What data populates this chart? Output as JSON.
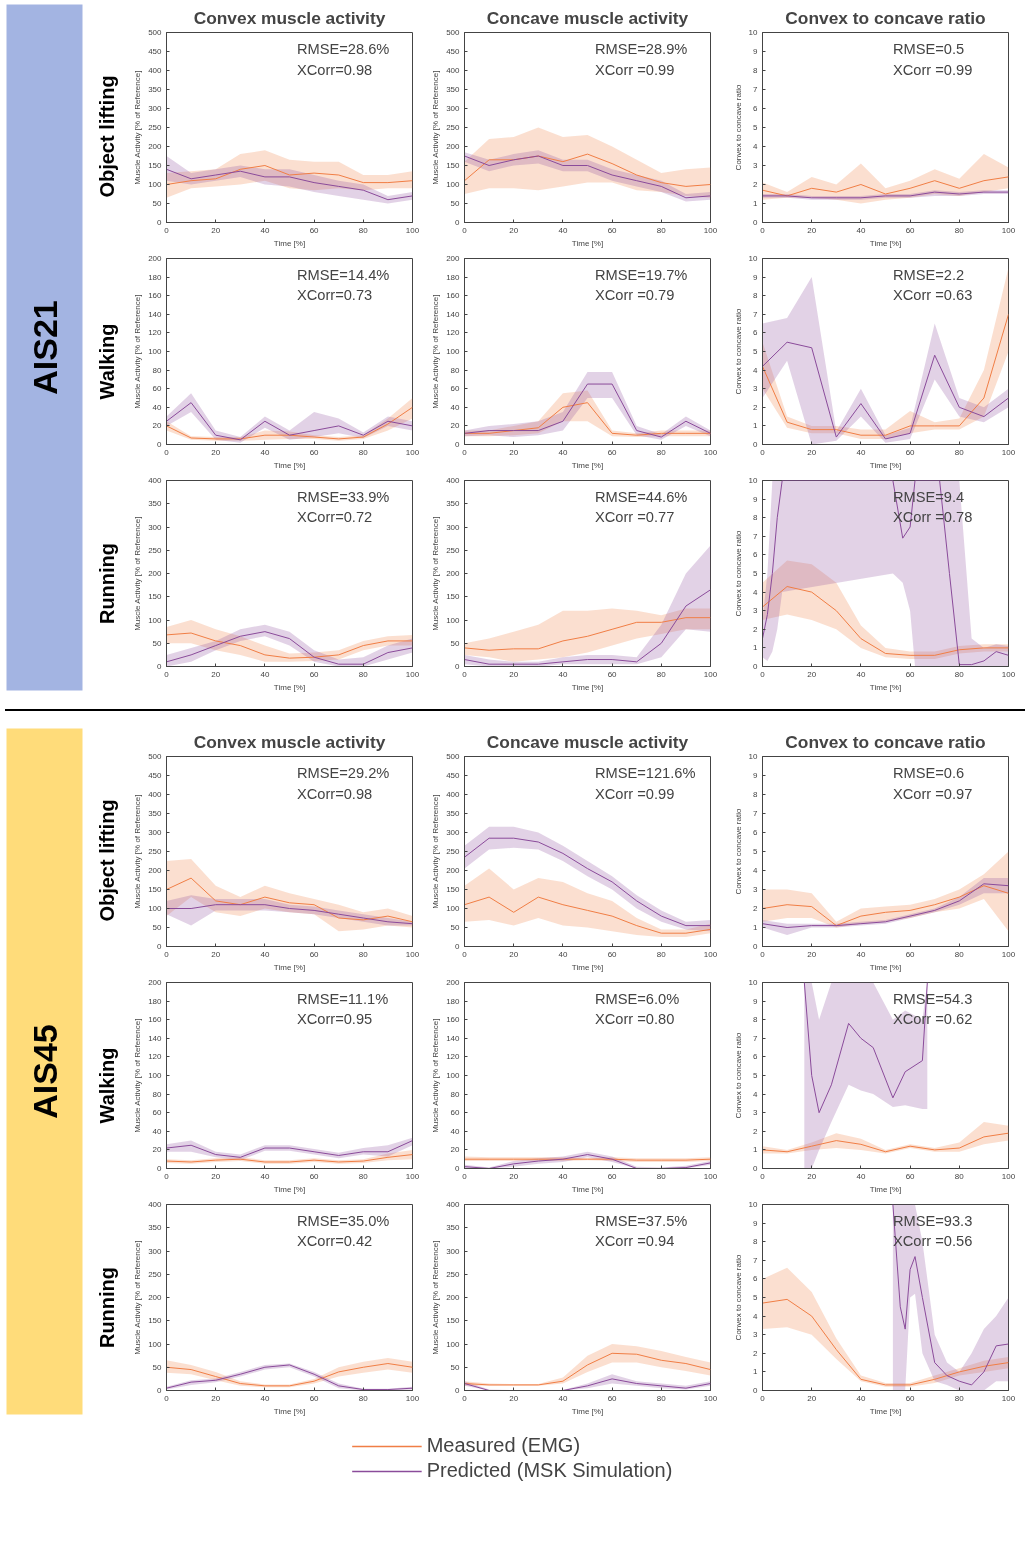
{
  "chart_data": [
    {
      "type": "other",
      "title": "AIS21",
      "color": "#a3b4e2",
      "annotations": [
        "Object lifting",
        "Walking",
        "Running"
      ]
    },
    {
      "type": "line",
      "title": "Convex muscle activity",
      "xlabel": "Time [%]",
      "ylabel": "Muscle Activity [% of Reference]",
      "x": [
        0,
        10,
        20,
        30,
        40,
        50,
        60,
        70,
        80,
        90,
        100
      ],
      "xlim": [
        0,
        100
      ],
      "xticks": [
        0,
        20,
        40,
        60,
        80,
        100
      ],
      "ylim": [
        0,
        500
      ],
      "yticks": [
        0,
        50,
        100,
        150,
        200,
        250,
        300,
        350,
        400,
        450,
        500
      ],
      "annotations": [
        "RMSE=28.6%",
        "XCorr=0.98"
      ],
      "series": [
        {
          "color": "#f07e45",
          "values": [
            100,
            110,
            115,
            140,
            150,
            125,
            130,
            125,
            105,
            105,
            110
          ],
          "lower": [
            65,
            90,
            95,
            100,
            110,
            90,
            85,
            90,
            85,
            90,
            90
          ],
          "upper": [
            130,
            135,
            140,
            180,
            190,
            165,
            160,
            160,
            125,
            125,
            135
          ]
        },
        {
          "color": "#8a4b9a",
          "values": [
            140,
            115,
            125,
            135,
            120,
            120,
            105,
            95,
            85,
            60,
            70
          ],
          "lower": [
            110,
            100,
            110,
            120,
            100,
            95,
            80,
            70,
            60,
            50,
            60
          ],
          "upper": [
            175,
            130,
            140,
            150,
            140,
            140,
            125,
            110,
            100,
            70,
            80
          ]
        }
      ]
    },
    {
      "type": "line",
      "title": "Concave muscle activity",
      "xlabel": "Time [%]",
      "ylabel": "Muscle Activity [% of Reference]",
      "x": [
        0,
        10,
        20,
        30,
        40,
        50,
        60,
        70,
        80,
        90,
        100
      ],
      "xlim": [
        0,
        100
      ],
      "xticks": [
        0,
        20,
        40,
        60,
        80,
        100
      ],
      "ylim": [
        0,
        500
      ],
      "yticks": [
        0,
        50,
        100,
        150,
        200,
        250,
        300,
        350,
        400,
        450,
        500
      ],
      "annotations": [
        "RMSE=28.9%",
        "XCorr =0.99"
      ],
      "series": [
        {
          "color": "#f07e45",
          "values": [
            110,
            165,
            165,
            175,
            160,
            180,
            155,
            125,
            105,
            95,
            100
          ],
          "lower": [
            75,
            90,
            90,
            85,
            95,
            105,
            105,
            85,
            80,
            70,
            65
          ],
          "upper": [
            160,
            220,
            225,
            250,
            225,
            230,
            200,
            165,
            130,
            140,
            145
          ]
        },
        {
          "color": "#8a4b9a",
          "values": [
            175,
            150,
            165,
            175,
            150,
            150,
            125,
            110,
            95,
            65,
            70
          ],
          "lower": [
            160,
            135,
            150,
            155,
            135,
            135,
            110,
            95,
            80,
            55,
            60
          ],
          "upper": [
            185,
            165,
            180,
            190,
            165,
            165,
            140,
            125,
            110,
            75,
            80
          ]
        }
      ]
    },
    {
      "type": "line",
      "title": "Convex to concave ratio",
      "xlabel": "Time [%]",
      "ylabel": "Convex to concave ratio",
      "x": [
        0,
        10,
        20,
        30,
        40,
        50,
        60,
        70,
        80,
        90,
        100
      ],
      "xlim": [
        0,
        100
      ],
      "xticks": [
        0,
        20,
        40,
        60,
        80,
        100
      ],
      "ylim": [
        0,
        10
      ],
      "yticks": [
        0,
        1,
        2,
        3,
        4,
        5,
        6,
        7,
        8,
        9,
        10
      ],
      "annotations": [
        "RMSE=0.5",
        "XCorr =0.99"
      ],
      "series": [
        {
          "color": "#f07e45",
          "values": [
            1.7,
            1.4,
            1.8,
            1.6,
            2.0,
            1.5,
            1.8,
            2.2,
            1.8,
            2.2,
            2.4
          ],
          "lower": [
            1.2,
            1.3,
            1.3,
            1.2,
            1.0,
            1.2,
            1.3,
            1.5,
            1.4,
            1.6,
            1.8
          ],
          "upper": [
            2.1,
            1.6,
            2.4,
            2.0,
            3.1,
            1.8,
            2.2,
            2.8,
            2.3,
            3.6,
            2.9
          ]
        },
        {
          "color": "#8a4b9a",
          "values": [
            1.4,
            1.4,
            1.3,
            1.3,
            1.3,
            1.4,
            1.4,
            1.6,
            1.5,
            1.6,
            1.6
          ],
          "lower": [
            1.3,
            1.3,
            1.2,
            1.2,
            1.2,
            1.3,
            1.3,
            1.4,
            1.4,
            1.5,
            1.5
          ],
          "upper": [
            1.5,
            1.5,
            1.4,
            1.4,
            1.4,
            1.5,
            1.5,
            1.7,
            1.6,
            1.7,
            1.7
          ]
        }
      ]
    },
    {
      "type": "line",
      "xlabel": "Time [%]",
      "ylabel": "Muscle Activity [% of Reference]",
      "x": [
        0,
        10,
        20,
        30,
        40,
        50,
        60,
        70,
        80,
        90,
        100
      ],
      "xlim": [
        0,
        100
      ],
      "xticks": [
        0,
        20,
        40,
        60,
        80,
        100
      ],
      "ylim": [
        0,
        200
      ],
      "yticks": [
        0,
        20,
        40,
        60,
        80,
        100,
        120,
        140,
        160,
        180,
        200
      ],
      "annotations": [
        "RMSE=14.4%",
        "XCorr=0.73"
      ],
      "series": [
        {
          "color": "#f07e45",
          "values": [
            20,
            7,
            6,
            6,
            10,
            10,
            8,
            6,
            8,
            22,
            40
          ],
          "lower": [
            15,
            5,
            4,
            4,
            5,
            6,
            6,
            4,
            6,
            15,
            28
          ],
          "upper": [
            25,
            9,
            8,
            8,
            15,
            14,
            10,
            8,
            10,
            28,
            50
          ]
        },
        {
          "color": "#8a4b9a",
          "values": [
            25,
            45,
            10,
            5,
            25,
            10,
            15,
            20,
            10,
            25,
            20
          ],
          "lower": [
            20,
            35,
            5,
            2,
            18,
            5,
            8,
            12,
            7,
            20,
            15
          ],
          "upper": [
            30,
            55,
            15,
            8,
            30,
            15,
            35,
            28,
            13,
            30,
            25
          ]
        }
      ]
    },
    {
      "type": "line",
      "xlabel": "Time [%]",
      "ylabel": "Muscle Activity [% of Reference]",
      "x": [
        0,
        10,
        20,
        30,
        40,
        50,
        60,
        70,
        80,
        90,
        100
      ],
      "xlim": [
        0,
        100
      ],
      "xticks": [
        0,
        20,
        40,
        60,
        80,
        100
      ],
      "ylim": [
        0,
        200
      ],
      "yticks": [
        0,
        20,
        40,
        60,
        80,
        100,
        120,
        140,
        160,
        180,
        200
      ],
      "annotations": [
        "RMSE=19.7%",
        "XCorr =0.79"
      ],
      "series": [
        {
          "color": "#f07e45",
          "values": [
            12,
            12,
            15,
            18,
            40,
            45,
            12,
            10,
            12,
            12,
            12
          ],
          "lower": [
            9,
            9,
            10,
            12,
            25,
            25,
            9,
            8,
            9,
            9,
            9
          ],
          "upper": [
            15,
            15,
            20,
            25,
            55,
            58,
            15,
            12,
            15,
            15,
            15
          ]
        },
        {
          "color": "#8a4b9a",
          "values": [
            12,
            15,
            15,
            15,
            25,
            65,
            65,
            15,
            8,
            25,
            12
          ],
          "lower": [
            9,
            10,
            8,
            10,
            15,
            50,
            50,
            10,
            5,
            20,
            9
          ],
          "upper": [
            15,
            20,
            22,
            25,
            35,
            78,
            78,
            20,
            11,
            30,
            15
          ]
        }
      ]
    },
    {
      "type": "line",
      "xlabel": "Time [%]",
      "ylabel": "Convex to concave ratio",
      "x": [
        0,
        10,
        20,
        30,
        40,
        50,
        60,
        70,
        80,
        90,
        100
      ],
      "xlim": [
        0,
        100
      ],
      "xticks": [
        0,
        20,
        40,
        60,
        80,
        100
      ],
      "ylim": [
        0,
        10
      ],
      "yticks": [
        0,
        1,
        2,
        3,
        4,
        5,
        6,
        7,
        8,
        9,
        10
      ],
      "annotations": [
        "RMSE=2.2",
        "XCorr =0.63"
      ],
      "series": [
        {
          "color": "#f07e45",
          "values": [
            4.2,
            1.2,
            0.8,
            0.8,
            0.5,
            0.5,
            1.0,
            1.0,
            1.0,
            2.5,
            7.0
          ],
          "lower": [
            3.0,
            0.9,
            0.6,
            0.6,
            0.3,
            0.3,
            0.6,
            0.8,
            0.8,
            1.5,
            5.0
          ],
          "upper": [
            5.5,
            1.5,
            1.0,
            1.0,
            0.8,
            0.8,
            1.8,
            1.2,
            1.4,
            4.0,
            9.5
          ]
        },
        {
          "color": "#8a4b9a",
          "values": [
            4.2,
            5.5,
            5.2,
            0.4,
            2.2,
            0.3,
            0.6,
            4.8,
            2.0,
            1.5,
            2.5
          ],
          "lower": [
            2.5,
            4.5,
            0,
            0.2,
            1.5,
            0.1,
            0.3,
            3.5,
            1.5,
            1.2,
            2.0
          ],
          "upper": [
            6.5,
            6.8,
            9.0,
            0.7,
            3.0,
            0.5,
            0.9,
            6.5,
            2.5,
            2.0,
            3.0
          ]
        }
      ]
    },
    {
      "type": "line",
      "xlabel": "Time [%]",
      "ylabel": "Muscle Activity [% of Reference]",
      "x": [
        0,
        10,
        20,
        30,
        40,
        50,
        60,
        70,
        80,
        90,
        100
      ],
      "xlim": [
        0,
        100
      ],
      "xticks": [
        0,
        20,
        40,
        60,
        80,
        100
      ],
      "ylim": [
        0,
        400
      ],
      "yticks": [
        0,
        50,
        100,
        150,
        200,
        250,
        300,
        350,
        400
      ],
      "annotations": [
        "RMSE=33.9%",
        "XCorr=0.72"
      ],
      "series": [
        {
          "color": "#f07e45",
          "values": [
            68,
            72,
            55,
            45,
            25,
            18,
            20,
            25,
            45,
            55,
            55
          ],
          "lower": [
            50,
            50,
            35,
            25,
            10,
            10,
            12,
            15,
            35,
            45,
            45
          ],
          "upper": [
            85,
            100,
            80,
            65,
            45,
            28,
            30,
            35,
            55,
            65,
            68
          ]
        },
        {
          "color": "#8a4b9a",
          "values": [
            10,
            25,
            45,
            65,
            75,
            60,
            20,
            5,
            5,
            30,
            40
          ],
          "lower": [
            0,
            10,
            35,
            55,
            65,
            45,
            10,
            0,
            0,
            15,
            30
          ],
          "upper": [
            25,
            40,
            55,
            80,
            90,
            75,
            35,
            15,
            20,
            45,
            60
          ]
        }
      ]
    },
    {
      "type": "line",
      "xlabel": "Time [%]",
      "ylabel": "Muscle Activity [% of Reference]",
      "x": [
        0,
        10,
        20,
        30,
        40,
        50,
        60,
        70,
        80,
        90,
        100
      ],
      "xlim": [
        0,
        100
      ],
      "xticks": [
        0,
        20,
        40,
        60,
        80,
        100
      ],
      "ylim": [
        0,
        400
      ],
      "yticks": [
        0,
        50,
        100,
        150,
        200,
        250,
        300,
        350,
        400
      ],
      "annotations": [
        "RMSE=44.6%",
        "XCorr =0.77"
      ],
      "series": [
        {
          "color": "#f07e45",
          "values": [
            40,
            35,
            38,
            38,
            55,
            65,
            80,
            95,
            95,
            105,
            105
          ],
          "lower": [
            25,
            20,
            10,
            15,
            20,
            30,
            45,
            60,
            70,
            80,
            80
          ],
          "upper": [
            50,
            60,
            75,
            90,
            120,
            120,
            125,
            120,
            110,
            125,
            125
          ]
        },
        {
          "color": "#8a4b9a",
          "values": [
            15,
            5,
            5,
            5,
            10,
            15,
            15,
            10,
            50,
            130,
            165
          ],
          "lower": [
            5,
            0,
            0,
            0,
            5,
            5,
            5,
            5,
            20,
            80,
            75
          ],
          "upper": [
            25,
            15,
            10,
            10,
            20,
            25,
            25,
            20,
            90,
            200,
            260
          ]
        }
      ]
    },
    {
      "type": "line",
      "xlabel": "Time [%]",
      "ylabel": "Convex to concave ratio",
      "x": [
        0,
        10,
        20,
        30,
        40,
        50,
        60,
        70,
        80,
        90,
        100
      ],
      "xlim": [
        0,
        100
      ],
      "xticks": [
        0,
        20,
        40,
        60,
        80,
        100
      ],
      "ylim": [
        0,
        10
      ],
      "yticks": [
        0,
        1,
        2,
        3,
        4,
        5,
        6,
        7,
        8,
        9,
        10
      ],
      "annotations": [
        "RMSE=9.4",
        "XCorr =0.78"
      ],
      "series": [
        {
          "color": "#f07e45",
          "values": [
            3.2,
            4.3,
            4.0,
            3.0,
            1.5,
            0.7,
            0.6,
            0.6,
            0.9,
            1.0,
            1.0
          ],
          "lower": [
            2.5,
            2.8,
            2.5,
            2.0,
            1.0,
            0.5,
            0.4,
            0.4,
            0.7,
            0.8,
            0.8
          ],
          "upper": [
            4.5,
            5.7,
            5.5,
            4.5,
            2.2,
            1.0,
            0.8,
            0.8,
            1.1,
            1.2,
            1.2
          ]
        },
        {
          "color": "#8a4b9a",
          "x": [
            0,
            2,
            4,
            6,
            8,
            53,
            57,
            60,
            62,
            72,
            76,
            80,
            85,
            90,
            95,
            100
          ],
          "values": [
            1.5,
            2.8,
            5,
            8,
            10,
            10,
            6.9,
            7.5,
            10,
            10,
            5,
            0.1,
            0.1,
            0.3,
            0.8,
            0.6
          ],
          "lower": [
            0.5,
            0.3,
            0.8,
            2,
            4,
            5,
            4.5,
            3,
            0,
            0,
            0,
            0,
            0,
            0,
            0,
            0
          ],
          "upper": [
            2.5,
            5,
            10,
            10,
            10,
            10,
            10,
            10,
            10,
            10,
            10,
            10,
            1.5,
            1,
            1.2,
            1.1
          ]
        }
      ]
    },
    {
      "type": "other",
      "title": "AIS45",
      "color": "#ffdc7a",
      "annotations": [
        "Object lifting",
        "Walking",
        "Running"
      ]
    },
    {
      "type": "line",
      "title": "Convex muscle activity",
      "xlabel": "Time [%]",
      "ylabel": "Muscle Activity [% of Reference]",
      "x": [
        0,
        10,
        20,
        30,
        40,
        50,
        60,
        70,
        80,
        90,
        100
      ],
      "xlim": [
        0,
        100
      ],
      "xticks": [
        0,
        20,
        40,
        60,
        80,
        100
      ],
      "ylim": [
        0,
        500
      ],
      "yticks": [
        0,
        50,
        100,
        150,
        200,
        250,
        300,
        350,
        400,
        450,
        500
      ],
      "annotations": [
        "RMSE=29.2%",
        "XCorr=0.98"
      ],
      "series": [
        {
          "color": "#f07e45",
          "values": [
            150,
            180,
            120,
            110,
            130,
            115,
            110,
            75,
            70,
            80,
            65
          ],
          "lower": [
            80,
            130,
            90,
            80,
            100,
            90,
            85,
            40,
            45,
            55,
            50
          ],
          "upper": [
            225,
            230,
            160,
            130,
            160,
            140,
            125,
            110,
            90,
            100,
            80
          ]
        },
        {
          "color": "#8a4b9a",
          "values": [
            100,
            100,
            110,
            110,
            110,
            100,
            95,
            85,
            75,
            65,
            60
          ],
          "lower": [
            85,
            55,
            95,
            95,
            95,
            90,
            85,
            75,
            65,
            55,
            55
          ],
          "upper": [
            120,
            135,
            125,
            125,
            125,
            110,
            105,
            95,
            85,
            75,
            65
          ]
        }
      ]
    },
    {
      "type": "line",
      "title": "Concave muscle activity",
      "xlabel": "Time [%]",
      "ylabel": "Muscle Activity [% of Reference]",
      "x": [
        0,
        10,
        20,
        30,
        40,
        50,
        60,
        70,
        80,
        90,
        100
      ],
      "xlim": [
        0,
        100
      ],
      "xticks": [
        0,
        20,
        40,
        60,
        80,
        100
      ],
      "ylim": [
        0,
        500
      ],
      "yticks": [
        0,
        50,
        100,
        150,
        200,
        250,
        300,
        350,
        400,
        450,
        500
      ],
      "annotations": [
        "RMSE=121.6%",
        "XCorr =0.99"
      ],
      "series": [
        {
          "color": "#f07e45",
          "values": [
            110,
            130,
            90,
            130,
            110,
            95,
            80,
            55,
            35,
            35,
            45
          ],
          "lower": [
            65,
            70,
            55,
            75,
            55,
            50,
            40,
            30,
            25,
            25,
            35
          ],
          "upper": [
            160,
            205,
            150,
            180,
            170,
            140,
            120,
            75,
            45,
            45,
            60
          ]
        },
        {
          "color": "#8a4b9a",
          "values": [
            235,
            285,
            285,
            275,
            245,
            205,
            170,
            120,
            80,
            55,
            55
          ],
          "lower": [
            205,
            255,
            260,
            255,
            225,
            185,
            150,
            100,
            65,
            45,
            40
          ],
          "upper": [
            265,
            315,
            315,
            300,
            265,
            225,
            185,
            135,
            95,
            65,
            70
          ]
        }
      ]
    },
    {
      "type": "line",
      "title": "Convex to concave ratio",
      "xlabel": "Time [%]",
      "ylabel": "Convex to concave ratio",
      "x": [
        0,
        10,
        20,
        30,
        40,
        50,
        60,
        70,
        80,
        90,
        100
      ],
      "xlim": [
        0,
        100
      ],
      "xticks": [
        0,
        20,
        40,
        60,
        80,
        100
      ],
      "ylim": [
        0,
        10
      ],
      "yticks": [
        0,
        1,
        2,
        3,
        4,
        5,
        6,
        7,
        8,
        9,
        10
      ],
      "annotations": [
        "RMSE=0.6",
        "XCorr =0.97"
      ],
      "series": [
        {
          "color": "#f07e45",
          "values": [
            2.0,
            2.2,
            2.1,
            1.1,
            1.6,
            1.8,
            1.9,
            2.2,
            2.6,
            3.2,
            2.8
          ],
          "lower": [
            1.3,
            1.5,
            1.5,
            1.0,
            1.2,
            1.3,
            1.5,
            1.8,
            2.0,
            2.5,
            0.8
          ],
          "upper": [
            3.0,
            3.0,
            2.8,
            1.3,
            2.0,
            2.1,
            2.2,
            2.5,
            3.0,
            3.8,
            5.0
          ]
        },
        {
          "color": "#8a4b9a",
          "values": [
            1.2,
            1.0,
            1.1,
            1.1,
            1.2,
            1.3,
            1.6,
            1.9,
            2.4,
            3.3,
            3.2
          ],
          "lower": [
            1.0,
            0.6,
            1.0,
            1.0,
            1.1,
            1.2,
            1.5,
            1.8,
            2.2,
            2.8,
            2.8
          ],
          "upper": [
            1.4,
            1.2,
            1.2,
            1.2,
            1.3,
            1.4,
            1.7,
            2.0,
            2.6,
            3.6,
            3.6
          ]
        }
      ]
    },
    {
      "type": "line",
      "xlabel": "Time [%]",
      "ylabel": "Muscle Activity [% of Reference]",
      "x": [
        0,
        10,
        20,
        30,
        40,
        50,
        60,
        70,
        80,
        90,
        100
      ],
      "xlim": [
        0,
        100
      ],
      "xticks": [
        0,
        20,
        40,
        60,
        80,
        100
      ],
      "ylim": [
        0,
        200
      ],
      "yticks": [
        0,
        20,
        40,
        60,
        80,
        100,
        120,
        140,
        160,
        180,
        200
      ],
      "annotations": [
        "RMSE=11.1%",
        "XCorr=0.95"
      ],
      "series": [
        {
          "color": "#f07e45",
          "values": [
            8,
            7,
            9,
            10,
            7,
            7,
            9,
            7,
            8,
            12,
            15
          ],
          "lower": [
            6,
            5,
            7,
            8,
            5,
            5,
            7,
            5,
            6,
            9,
            10
          ],
          "upper": [
            10,
            9,
            11,
            12,
            9,
            9,
            11,
            9,
            10,
            16,
            20
          ]
        },
        {
          "color": "#8a4b9a",
          "values": [
            22,
            25,
            15,
            12,
            22,
            22,
            18,
            14,
            18,
            18,
            30
          ],
          "lower": [
            18,
            18,
            12,
            9,
            19,
            19,
            15,
            11,
            15,
            13,
            25
          ],
          "upper": [
            26,
            30,
            18,
            15,
            25,
            25,
            21,
            17,
            22,
            25,
            33
          ]
        }
      ]
    },
    {
      "type": "line",
      "xlabel": "Time [%]",
      "ylabel": "Muscle Activity [% of Reference]",
      "x": [
        0,
        10,
        20,
        30,
        40,
        50,
        60,
        70,
        80,
        90,
        100
      ],
      "xlim": [
        0,
        100
      ],
      "xticks": [
        0,
        20,
        40,
        60,
        80,
        100
      ],
      "ylim": [
        0,
        200
      ],
      "yticks": [
        0,
        20,
        40,
        60,
        80,
        100,
        120,
        140,
        160,
        180,
        200
      ],
      "annotations": [
        "RMSE=6.0%",
        "XCorr =0.80"
      ],
      "series": [
        {
          "color": "#f07e45",
          "values": [
            10,
            10,
            10,
            10,
            10,
            10,
            10,
            9,
            9,
            9,
            10
          ],
          "lower": [
            8,
            8,
            8,
            8,
            8,
            9,
            8,
            7,
            7,
            7,
            8
          ],
          "upper": [
            13,
            12,
            12,
            12,
            12,
            11,
            12,
            11,
            11,
            11,
            12
          ]
        },
        {
          "color": "#8a4b9a",
          "values": [
            2,
            0,
            5,
            8,
            10,
            15,
            10,
            0,
            0,
            1,
            6
          ],
          "lower": [
            0,
            0,
            2,
            5,
            7,
            12,
            7,
            0,
            0,
            0,
            4
          ],
          "upper": [
            4,
            1,
            8,
            11,
            13,
            18,
            13,
            2,
            1,
            3,
            8
          ]
        }
      ]
    },
    {
      "type": "line",
      "xlabel": "Time [%]",
      "ylabel": "Convex to concave ratio",
      "x": [
        0,
        10,
        20,
        30,
        40,
        50,
        60,
        70,
        80,
        90,
        100
      ],
      "xlim": [
        0,
        100
      ],
      "xticks": [
        0,
        20,
        40,
        60,
        80,
        100
      ],
      "ylim": [
        0,
        10
      ],
      "yticks": [
        0,
        1,
        2,
        3,
        4,
        5,
        6,
        7,
        8,
        9,
        10
      ],
      "annotations": [
        "RMSE=54.3",
        "XCorr =0.62"
      ],
      "series": [
        {
          "color": "#f07e45",
          "values": [
            1.0,
            0.9,
            1.2,
            1.5,
            1.3,
            0.9,
            1.2,
            1.0,
            1.1,
            1.7,
            1.9
          ],
          "lower": [
            0.8,
            0.8,
            1.0,
            1.1,
            1.0,
            0.8,
            1.1,
            0.9,
            0.9,
            1.3,
            1.5
          ],
          "upper": [
            1.2,
            1.0,
            1.4,
            1.9,
            1.6,
            1.0,
            1.3,
            1.1,
            1.4,
            2.5,
            2.3
          ]
        },
        {
          "color": "#8a4b9a",
          "x": [
            17,
            20,
            23,
            28,
            35,
            40,
            45,
            53,
            58,
            65,
            67
          ],
          "values": [
            10,
            5,
            3,
            4.5,
            7.8,
            7,
            6.5,
            3.8,
            5.2,
            5.8,
            10
          ],
          "lower": [
            0,
            0,
            1.0,
            2.5,
            4.5,
            4.2,
            4.0,
            3.3,
            3.4,
            3.2,
            3.2
          ],
          "upper": [
            10,
            10,
            8,
            10,
            10,
            10,
            10,
            8,
            8.5,
            8,
            10
          ]
        }
      ]
    },
    {
      "type": "line",
      "xlabel": "Time [%]",
      "ylabel": "Muscle Activity [% of Reference]",
      "x": [
        0,
        10,
        20,
        30,
        40,
        50,
        60,
        70,
        80,
        90,
        100
      ],
      "xlim": [
        0,
        100
      ],
      "xticks": [
        0,
        20,
        40,
        60,
        80,
        100
      ],
      "ylim": [
        0,
        400
      ],
      "yticks": [
        0,
        50,
        100,
        150,
        200,
        250,
        300,
        350,
        400
      ],
      "annotations": [
        "RMSE=35.0%",
        "XCorr=0.42"
      ],
      "series": [
        {
          "color": "#f07e45",
          "values": [
            50,
            45,
            30,
            15,
            10,
            10,
            20,
            40,
            50,
            58,
            50
          ],
          "lower": [
            38,
            35,
            22,
            10,
            7,
            7,
            15,
            30,
            38,
            45,
            38
          ],
          "upper": [
            65,
            55,
            40,
            20,
            13,
            13,
            25,
            50,
            62,
            70,
            62
          ]
        },
        {
          "color": "#8a4b9a",
          "values": [
            5,
            18,
            22,
            35,
            50,
            55,
            35,
            10,
            2,
            2,
            5
          ],
          "lower": [
            2,
            12,
            18,
            30,
            45,
            50,
            30,
            5,
            0,
            0,
            2
          ],
          "upper": [
            8,
            22,
            26,
            40,
            55,
            58,
            40,
            15,
            4,
            4,
            8
          ]
        }
      ]
    },
    {
      "type": "line",
      "xlabel": "Time [%]",
      "ylabel": "Muscle Activity [% of Reference]",
      "x": [
        0,
        10,
        20,
        30,
        40,
        50,
        60,
        70,
        80,
        90,
        100
      ],
      "xlim": [
        0,
        100
      ],
      "xticks": [
        0,
        20,
        40,
        60,
        80,
        100
      ],
      "ylim": [
        0,
        400
      ],
      "yticks": [
        0,
        50,
        100,
        150,
        200,
        250,
        300,
        350,
        400
      ],
      "annotations": [
        "RMSE=37.5%",
        "XCorr =0.94"
      ],
      "series": [
        {
          "color": "#f07e45",
          "values": [
            15,
            12,
            12,
            12,
            20,
            55,
            80,
            78,
            65,
            58,
            45
          ],
          "lower": [
            10,
            10,
            10,
            10,
            15,
            40,
            60,
            60,
            50,
            42,
            32
          ],
          "upper": [
            20,
            15,
            14,
            14,
            28,
            75,
            100,
            95,
            85,
            72,
            60
          ]
        },
        {
          "color": "#8a4b9a",
          "values": [
            15,
            0,
            0,
            0,
            0,
            10,
            25,
            15,
            10,
            5,
            15
          ],
          "lower": [
            10,
            0,
            0,
            0,
            0,
            5,
            15,
            10,
            5,
            2,
            10
          ],
          "upper": [
            20,
            2,
            1,
            1,
            1,
            15,
            35,
            20,
            15,
            10,
            20
          ]
        }
      ]
    },
    {
      "type": "line",
      "xlabel": "Time [%]",
      "ylabel": "Convex to concave ratio",
      "x": [
        0,
        10,
        20,
        30,
        40,
        50,
        60,
        70,
        80,
        90,
        100
      ],
      "xlim": [
        0,
        100
      ],
      "xticks": [
        0,
        20,
        40,
        60,
        80,
        100
      ],
      "ylim": [
        0,
        10
      ],
      "yticks": [
        0,
        1,
        2,
        3,
        4,
        5,
        6,
        7,
        8,
        9,
        10
      ],
      "annotations": [
        "RMSE=93.3",
        "XCorr =0.56"
      ],
      "legend": "bottom",
      "series": [
        {
          "name": "Measured (EMG)",
          "color": "#f07e45",
          "values": [
            4.7,
            4.9,
            4.0,
            2.2,
            0.6,
            0.3,
            0.3,
            0.6,
            1.0,
            1.3,
            1.5
          ],
          "lower": [
            3.3,
            3.4,
            3.0,
            1.7,
            0.5,
            0.2,
            0.2,
            0.4,
            0.8,
            1.0,
            1.2
          ],
          "upper": [
            6.0,
            6.6,
            5.3,
            2.8,
            0.8,
            0.4,
            0.4,
            0.8,
            1.2,
            1.6,
            1.8
          ]
        },
        {
          "name": "Predicted (MSK Simulation)",
          "color": "#8a4b9a",
          "x": [
            53,
            56,
            58,
            60,
            62,
            65,
            70,
            75,
            80,
            85,
            90,
            95,
            100
          ],
          "values": [
            10,
            4.5,
            3.3,
            6.5,
            7.2,
            5,
            1.5,
            0.8,
            0.5,
            0.3,
            1,
            2.4,
            2.5
          ],
          "lower": [
            0,
            0,
            0,
            5,
            5.2,
            2,
            0.5,
            0.3,
            0,
            0,
            0,
            0.5,
            0.5
          ],
          "upper": [
            10,
            10,
            10,
            10,
            10,
            8,
            3,
            1.5,
            1.0,
            2,
            3.3,
            4.0,
            5.0
          ]
        }
      ]
    }
  ]
}
